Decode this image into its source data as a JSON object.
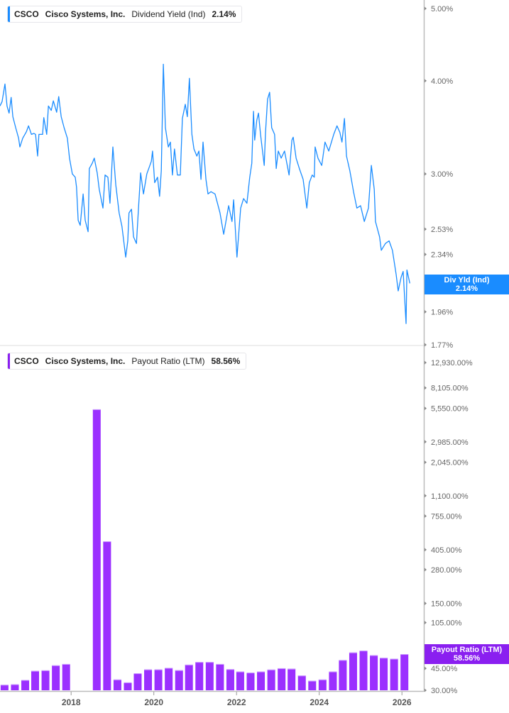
{
  "top_legend": {
    "ticker": "CSCO",
    "company": "Cisco Systems, Inc.",
    "metric": "Dividend Yield (Ind)",
    "value": "2.14%"
  },
  "bottom_legend": {
    "ticker": "CSCO",
    "company": "Cisco Systems, Inc.",
    "metric": "Payout Ratio (LTM)",
    "value": "58.56%"
  },
  "top_badge": {
    "label": "Div Yld (Ind)",
    "value": "2.14%"
  },
  "bottom_badge": {
    "label": "Payout Ratio (LTM)",
    "value": "58.56%"
  },
  "colors": {
    "yield_line": "#1a8cff",
    "payout_bars": "#9b30ff",
    "payout_badge": "#8a1ff0"
  },
  "chart_data": [
    {
      "type": "line",
      "scale": "log",
      "ylim": [
        1.77,
        5.0
      ],
      "yticks": [
        "5.00%",
        "4.00%",
        "3.00%",
        "2.53%",
        "2.34%",
        "2.15%",
        "1.96%",
        "1.77%"
      ],
      "ytick_values": [
        5.0,
        4.0,
        3.0,
        2.53,
        2.34,
        2.15,
        1.96,
        1.77
      ],
      "series": [
        {
          "name": "Dividend Yield (Ind)",
          "x": [
            2016.28,
            2016.33,
            2016.4,
            2016.45,
            2016.5,
            2016.55,
            2016.59,
            2016.66,
            2016.73,
            2016.76,
            2016.83,
            2016.92,
            2016.97,
            2017.04,
            2017.1,
            2017.14,
            2017.19,
            2017.22,
            2017.31,
            2017.34,
            2017.41,
            2017.45,
            2017.52,
            2017.57,
            2017.65,
            2017.7,
            2017.76,
            2017.83,
            2017.91,
            2017.96,
            2018.03,
            2018.1,
            2018.13,
            2018.17,
            2018.22,
            2018.29,
            2018.34,
            2018.41,
            2018.44,
            2018.51,
            2018.56,
            2018.63,
            2018.68,
            2018.77,
            2018.82,
            2018.89,
            2018.94,
            2019.01,
            2019.08,
            2019.16,
            2019.23,
            2019.32,
            2019.37,
            2019.4,
            2019.46,
            2019.51,
            2019.58,
            2019.63,
            2019.68,
            2019.75,
            2019.83,
            2019.94,
            2019.97,
            2020.02,
            2020.09,
            2020.14,
            2020.18,
            2020.23,
            2020.28,
            2020.35,
            2020.4,
            2020.45,
            2020.5,
            2020.57,
            2020.64,
            2020.69,
            2020.76,
            2020.81,
            2020.86,
            2020.92,
            2020.97,
            2021.04,
            2021.09,
            2021.14,
            2021.19,
            2021.26,
            2021.31,
            2021.38,
            2021.48,
            2021.6,
            2021.69,
            2021.81,
            2021.89,
            2021.93,
            2022.01,
            2022.1,
            2022.17,
            2022.25,
            2022.32,
            2022.37,
            2022.41,
            2022.44,
            2022.49,
            2022.53,
            2022.58,
            2022.67,
            2022.7,
            2022.75,
            2022.8,
            2022.85,
            2022.92,
            2022.96,
            2023.01,
            2023.08,
            2023.16,
            2023.27,
            2023.34,
            2023.37,
            2023.44,
            2023.52,
            2023.61,
            2023.7,
            2023.76,
            2023.83,
            2023.88,
            2023.9,
            2023.97,
            2024.06,
            2024.14,
            2024.23,
            2024.35,
            2024.43,
            2024.5,
            2024.55,
            2024.61,
            2024.66,
            2024.74,
            2024.83,
            2024.91,
            2025.0,
            2025.09,
            2025.19,
            2025.26,
            2025.33,
            2025.36,
            2025.46,
            2025.5,
            2025.6,
            2025.69,
            2025.77,
            2025.86,
            2025.91,
            2025.98,
            2026.03,
            2026.1,
            2026.12,
            2026.19
          ],
          "values": [
            3.7,
            3.75,
            3.96,
            3.7,
            3.62,
            3.8,
            3.58,
            3.46,
            3.35,
            3.26,
            3.35,
            3.42,
            3.48,
            3.39,
            3.4,
            3.39,
            3.17,
            3.39,
            3.39,
            3.57,
            3.39,
            3.7,
            3.65,
            3.76,
            3.63,
            3.81,
            3.58,
            3.46,
            3.35,
            3.15,
            3.0,
            2.97,
            2.88,
            2.6,
            2.56,
            2.82,
            2.6,
            2.51,
            3.05,
            3.1,
            3.15,
            3.01,
            2.86,
            2.7,
            2.99,
            2.97,
            2.74,
            3.26,
            2.9,
            2.66,
            2.55,
            2.32,
            2.44,
            2.66,
            2.69,
            2.47,
            2.42,
            2.7,
            3.01,
            2.82,
            3.0,
            3.12,
            3.22,
            2.92,
            2.97,
            2.8,
            3.03,
            4.21,
            3.46,
            3.26,
            3.31,
            2.99,
            3.24,
            2.99,
            2.99,
            3.56,
            3.72,
            3.58,
            4.03,
            3.39,
            3.24,
            3.17,
            3.22,
            2.95,
            3.31,
            2.95,
            2.82,
            2.84,
            2.82,
            2.66,
            2.49,
            2.72,
            2.59,
            2.77,
            2.32,
            2.7,
            2.78,
            2.74,
            2.97,
            3.1,
            3.64,
            3.33,
            3.54,
            3.62,
            3.39,
            3.08,
            3.41,
            3.78,
            3.86,
            3.46,
            3.39,
            3.05,
            3.22,
            3.15,
            3.22,
            2.99,
            3.33,
            3.36,
            3.15,
            3.05,
            2.95,
            2.7,
            2.92,
            2.99,
            2.97,
            3.26,
            3.15,
            3.08,
            3.31,
            3.22,
            3.39,
            3.48,
            3.41,
            3.31,
            3.56,
            3.17,
            3.03,
            2.84,
            2.7,
            2.72,
            2.59,
            2.7,
            3.08,
            2.86,
            2.59,
            2.47,
            2.37,
            2.42,
            2.44,
            2.37,
            2.2,
            2.09,
            2.18,
            2.22,
            1.89,
            2.23,
            2.14
          ]
        }
      ]
    },
    {
      "type": "bar",
      "scale": "log",
      "ylim": [
        30,
        12930
      ],
      "yticks": [
        "12,930.00%",
        "8,105.00%",
        "5,550.00%",
        "2,985.00%",
        "2,045.00%",
        "1,100.00%",
        "755.00%",
        "405.00%",
        "280.00%",
        "150.00%",
        "105.00%",
        "55.00%",
        "45.00%",
        "30.00%"
      ],
      "ytick_values": [
        12930,
        8105,
        5550,
        2985,
        2045,
        1100,
        755,
        405,
        280,
        150,
        105,
        55,
        45,
        30
      ],
      "xticks": [
        "2018",
        "2020",
        "2022",
        "2024",
        "2026"
      ],
      "xtick_values": [
        2018,
        2020,
        2022,
        2024,
        2026
      ],
      "xlim": [
        2016.28,
        2026.5
      ],
      "series": [
        {
          "name": "Payout Ratio (LTM)",
          "x": [
            2016.39,
            2016.64,
            2016.89,
            2017.13,
            2017.38,
            2017.63,
            2017.88,
            2018.13,
            2018.37,
            2018.62,
            2018.87,
            2019.12,
            2019.37,
            2019.61,
            2019.86,
            2020.11,
            2020.36,
            2020.61,
            2020.85,
            2021.1,
            2021.35,
            2021.6,
            2021.85,
            2022.09,
            2022.34,
            2022.59,
            2022.84,
            2023.09,
            2023.33,
            2023.58,
            2023.83,
            2024.08,
            2024.33,
            2024.57,
            2024.82,
            2025.07,
            2025.32,
            2025.56,
            2025.81,
            2026.06
          ],
          "values": [
            33.2,
            33.5,
            36.3,
            43.0,
            43.4,
            47.6,
            48.8,
            null,
            null,
            5450,
            473,
            36.6,
            34.7,
            41.1,
            44.1,
            44.1,
            45.4,
            43.5,
            48.2,
            50.6,
            50.6,
            48.8,
            44.3,
            42.4,
            41.6,
            42.4,
            44.0,
            45.1,
            44.7,
            39.4,
            35.8,
            36.6,
            42.4,
            52.5,
            60.4,
            62.5,
            57.4,
            54.7,
            53.8,
            58.56
          ]
        }
      ]
    }
  ]
}
